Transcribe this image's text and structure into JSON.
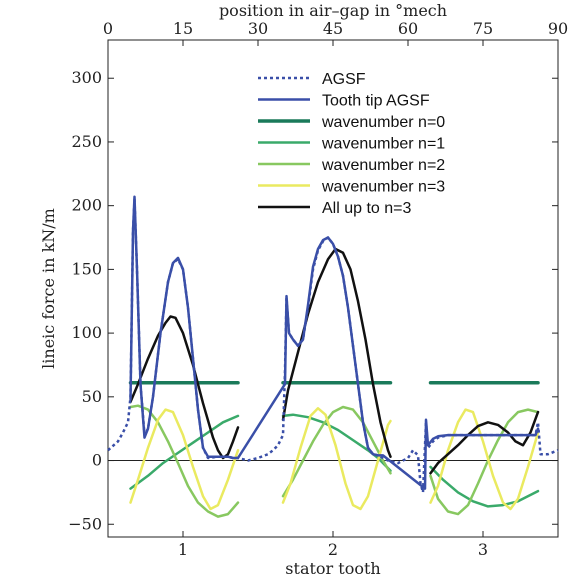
{
  "chart_data": {
    "type": "line",
    "xlabel": "stator tooth",
    "x2label": "position in air–gap in °mech",
    "ylabel": "lineic force in kN/m",
    "ylim": [
      -60,
      330
    ],
    "yticks": [
      "−50",
      "0",
      "50",
      "100",
      "150",
      "200",
      "250",
      "300"
    ],
    "ytick_values": [
      -50,
      0,
      50,
      100,
      150,
      200,
      250,
      300
    ],
    "xlim": [
      0,
      90
    ],
    "x2ticks": [
      "0",
      "15",
      "30",
      "45",
      "60",
      "75",
      "90"
    ],
    "x2tick_values": [
      0,
      15,
      30,
      45,
      60,
      75,
      90
    ],
    "xticks": [
      "1",
      "2",
      "3"
    ],
    "xtick_values": [
      15,
      45,
      75
    ],
    "grid": false,
    "legend_position": "top-center",
    "series": [
      {
        "name": "AGSF",
        "color": "#3a4fa8",
        "dash": true,
        "points": [
          [
            0,
            8
          ],
          [
            2,
            15
          ],
          [
            3,
            22
          ],
          [
            4,
            30
          ],
          [
            4.5,
            50
          ],
          [
            5,
            180
          ],
          [
            5.3,
            205
          ],
          [
            5.8,
            150
          ],
          [
            6.5,
            60
          ],
          [
            7.3,
            20
          ],
          [
            8,
            25
          ],
          [
            9,
            50
          ],
          [
            10.5,
            100
          ],
          [
            12,
            140
          ],
          [
            13,
            155
          ],
          [
            14,
            158
          ],
          [
            15,
            150
          ],
          [
            16,
            120
          ],
          [
            17,
            80
          ],
          [
            18,
            40
          ],
          [
            19,
            10
          ],
          [
            20,
            2
          ],
          [
            22,
            3
          ],
          [
            24,
            3
          ],
          [
            25,
            2
          ],
          [
            26,
            2
          ],
          [
            28,
            0
          ],
          [
            30,
            2
          ],
          [
            32,
            5
          ],
          [
            33,
            8
          ],
          [
            34,
            12
          ],
          [
            35,
            20
          ],
          [
            35.4,
            70
          ],
          [
            35.7,
            128
          ],
          [
            36.2,
            100
          ],
          [
            37,
            95
          ],
          [
            38,
            90
          ],
          [
            39,
            95
          ],
          [
            40,
            120
          ],
          [
            41,
            150
          ],
          [
            42,
            165
          ],
          [
            43,
            172
          ],
          [
            44,
            175
          ],
          [
            45,
            170
          ],
          [
            46,
            160
          ],
          [
            47,
            145
          ],
          [
            48,
            120
          ],
          [
            49,
            90
          ],
          [
            50,
            60
          ],
          [
            51,
            30
          ],
          [
            52,
            10
          ],
          [
            53,
            5
          ],
          [
            54,
            4
          ],
          [
            55,
            2
          ],
          [
            56,
            0
          ],
          [
            58,
            -2
          ],
          [
            60,
            2
          ],
          [
            61,
            8
          ],
          [
            62,
            4
          ],
          [
            62.5,
            -18
          ],
          [
            63,
            -25
          ],
          [
            63.6,
            30
          ],
          [
            64,
            10
          ],
          [
            65,
            15
          ],
          [
            66,
            18
          ],
          [
            68,
            20
          ],
          [
            70,
            20
          ],
          [
            72,
            20
          ],
          [
            74,
            20
          ],
          [
            76,
            20
          ],
          [
            78,
            20
          ],
          [
            80,
            20
          ],
          [
            82,
            20
          ],
          [
            84,
            20
          ],
          [
            85.5,
            20
          ],
          [
            86,
            30
          ],
          [
            86.5,
            5
          ],
          [
            88,
            5
          ],
          [
            90,
            8
          ]
        ]
      },
      {
        "name": "Tooth tip AGSF",
        "color": "#3a4fa8",
        "dash": false,
        "points": [
          [
            4.5,
            48
          ],
          [
            5,
            180
          ],
          [
            5.3,
            207
          ],
          [
            5.8,
            150
          ],
          [
            6.5,
            60
          ],
          [
            7.3,
            18
          ],
          [
            8,
            25
          ],
          [
            9,
            50
          ],
          [
            10.5,
            100
          ],
          [
            12,
            140
          ],
          [
            13,
            155
          ],
          [
            14,
            159
          ],
          [
            15,
            150
          ],
          [
            16,
            120
          ],
          [
            17,
            80
          ],
          [
            18,
            40
          ],
          [
            19,
            10
          ],
          [
            20,
            3
          ],
          [
            22,
            3
          ],
          [
            24,
            3
          ],
          [
            25,
            2
          ],
          [
            26,
            2
          ],
          [
            35.4,
            60
          ],
          [
            35.7,
            129
          ],
          [
            36.2,
            100
          ],
          [
            37,
            95
          ],
          [
            38,
            90
          ],
          [
            39,
            95
          ],
          [
            40,
            122
          ],
          [
            41,
            152
          ],
          [
            42,
            166
          ],
          [
            43,
            173
          ],
          [
            44,
            175
          ],
          [
            45,
            170
          ],
          [
            46,
            160
          ],
          [
            47,
            145
          ],
          [
            48,
            120
          ],
          [
            49,
            90
          ],
          [
            50,
            60
          ],
          [
            51,
            30
          ],
          [
            52,
            10
          ],
          [
            53,
            5
          ],
          [
            54,
            4
          ],
          [
            55,
            4
          ],
          [
            63.4,
            -22
          ],
          [
            63.6,
            32
          ],
          [
            64,
            12
          ],
          [
            65,
            17
          ],
          [
            66,
            19
          ],
          [
            68,
            20
          ],
          [
            70,
            20
          ],
          [
            72,
            20
          ],
          [
            74,
            20
          ],
          [
            76,
            20
          ],
          [
            78,
            20
          ],
          [
            80,
            20
          ],
          [
            82,
            20
          ],
          [
            84,
            20
          ],
          [
            85.5,
            20
          ],
          [
            86,
            25
          ]
        ]
      },
      {
        "name": "wavenumber n=0",
        "color": "#1a7a5a",
        "dash": false,
        "points": [
          [
            4.5,
            61
          ],
          [
            26,
            61
          ]
        ]
      },
      {
        "name": "wavenumber n=1",
        "color": "#3aaa6a",
        "dash": false,
        "points": [
          [
            4.5,
            -22
          ],
          [
            8,
            -12
          ],
          [
            11,
            -2
          ],
          [
            14,
            6
          ],
          [
            17,
            14
          ],
          [
            20,
            22
          ],
          [
            23,
            30
          ],
          [
            26,
            35
          ]
        ]
      },
      {
        "name": "wavenumber n=2",
        "color": "#88c860",
        "dash": false,
        "points": [
          [
            4.5,
            42
          ],
          [
            6,
            43
          ],
          [
            8,
            40
          ],
          [
            10,
            30
          ],
          [
            12,
            15
          ],
          [
            14,
            -2
          ],
          [
            16,
            -20
          ],
          [
            18,
            -33
          ],
          [
            20,
            -40
          ],
          [
            22,
            -44
          ],
          [
            24,
            -42
          ],
          [
            26,
            -33
          ]
        ]
      },
      {
        "name": "wavenumber n=3",
        "color": "#eaea60",
        "dash": false,
        "points": [
          [
            4.5,
            -33
          ],
          [
            6,
            -15
          ],
          [
            8,
            10
          ],
          [
            10,
            32
          ],
          [
            11.5,
            40
          ],
          [
            13,
            38
          ],
          [
            15,
            20
          ],
          [
            17,
            -5
          ],
          [
            19,
            -28
          ],
          [
            20.5,
            -38
          ],
          [
            22,
            -35
          ],
          [
            24,
            -15
          ],
          [
            26,
            8
          ]
        ]
      },
      {
        "name": "All up to n=3",
        "color": "#111111",
        "dash": false,
        "points": [
          [
            4.5,
            46
          ],
          [
            6,
            60
          ],
          [
            8,
            80
          ],
          [
            10,
            98
          ],
          [
            11.5,
            108
          ],
          [
            12.5,
            113
          ],
          [
            13.5,
            112
          ],
          [
            15,
            100
          ],
          [
            17,
            75
          ],
          [
            19,
            45
          ],
          [
            21,
            18
          ],
          [
            22,
            8
          ],
          [
            23,
            2
          ],
          [
            24,
            5
          ],
          [
            25,
            15
          ],
          [
            26,
            26
          ]
        ]
      },
      {
        "name": "",
        "color": "#1a7a5a",
        "dash": false,
        "points": [
          [
            35,
            61
          ],
          [
            56.5,
            61
          ]
        ]
      },
      {
        "name": "",
        "color": "#3aaa6a",
        "dash": false,
        "points": [
          [
            35,
            35
          ],
          [
            37,
            36
          ],
          [
            40,
            34
          ],
          [
            43,
            30
          ],
          [
            46,
            24
          ],
          [
            49,
            16
          ],
          [
            52,
            8
          ],
          [
            54,
            2
          ],
          [
            56.5,
            -8
          ]
        ]
      },
      {
        "name": "",
        "color": "#88c860",
        "dash": false,
        "points": [
          [
            35,
            -28
          ],
          [
            37,
            -15
          ],
          [
            39,
            0
          ],
          [
            41,
            15
          ],
          [
            43,
            28
          ],
          [
            45,
            38
          ],
          [
            47,
            42
          ],
          [
            49,
            40
          ],
          [
            51,
            30
          ],
          [
            53,
            15
          ],
          [
            55,
            0
          ],
          [
            56.5,
            -10
          ]
        ]
      },
      {
        "name": "",
        "color": "#eaea60",
        "dash": false,
        "points": [
          [
            35,
            -33
          ],
          [
            36.5,
            -18
          ],
          [
            38.5,
            10
          ],
          [
            40.5,
            35
          ],
          [
            42,
            41
          ],
          [
            43.5,
            36
          ],
          [
            45.5,
            12
          ],
          [
            47.5,
            -18
          ],
          [
            49,
            -35
          ],
          [
            50.5,
            -38
          ],
          [
            52,
            -28
          ],
          [
            54,
            0
          ],
          [
            56,
            28
          ],
          [
            56.5,
            31
          ]
        ]
      },
      {
        "name": "",
        "color": "#111111",
        "dash": false,
        "points": [
          [
            35,
            32
          ],
          [
            36,
            55
          ],
          [
            38,
            85
          ],
          [
            40,
            115
          ],
          [
            42,
            140
          ],
          [
            44,
            158
          ],
          [
            45.5,
            166
          ],
          [
            47,
            163
          ],
          [
            48.5,
            150
          ],
          [
            50,
            125
          ],
          [
            51.5,
            95
          ],
          [
            53,
            60
          ],
          [
            54.5,
            30
          ],
          [
            56,
            8
          ],
          [
            56.5,
            3
          ]
        ]
      },
      {
        "name": "",
        "color": "#1a7a5a",
        "dash": false,
        "points": [
          [
            64.5,
            61
          ],
          [
            86,
            61
          ]
        ]
      },
      {
        "name": "",
        "color": "#3aaa6a",
        "dash": false,
        "points": [
          [
            64.5,
            -5
          ],
          [
            67,
            -15
          ],
          [
            70,
            -25
          ],
          [
            73,
            -32
          ],
          [
            76,
            -36
          ],
          [
            79,
            -35
          ],
          [
            82,
            -32
          ],
          [
            86,
            -24
          ]
        ]
      },
      {
        "name": "",
        "color": "#88c860",
        "dash": false,
        "points": [
          [
            64.5,
            -12
          ],
          [
            66,
            -30
          ],
          [
            68,
            -40
          ],
          [
            70,
            -42
          ],
          [
            72,
            -35
          ],
          [
            74,
            -18
          ],
          [
            76,
            0
          ],
          [
            78,
            16
          ],
          [
            80,
            30
          ],
          [
            82,
            38
          ],
          [
            84,
            40
          ],
          [
            86,
            38
          ]
        ]
      },
      {
        "name": "",
        "color": "#eaea60",
        "dash": false,
        "points": [
          [
            64.5,
            -33
          ],
          [
            66,
            -20
          ],
          [
            68,
            8
          ],
          [
            70,
            30
          ],
          [
            71.5,
            40
          ],
          [
            73,
            38
          ],
          [
            75,
            15
          ],
          [
            77,
            -12
          ],
          [
            79,
            -33
          ],
          [
            80.5,
            -38
          ],
          [
            82,
            -30
          ],
          [
            84,
            -5
          ],
          [
            86,
            22
          ]
        ]
      },
      {
        "name": "",
        "color": "#111111",
        "dash": false,
        "points": [
          [
            64.5,
            -10
          ],
          [
            66,
            -2
          ],
          [
            68,
            5
          ],
          [
            70,
            12
          ],
          [
            72,
            20
          ],
          [
            74,
            27
          ],
          [
            76,
            30
          ],
          [
            78,
            28
          ],
          [
            80,
            22
          ],
          [
            81.5,
            15
          ],
          [
            83,
            12
          ],
          [
            84.5,
            22
          ],
          [
            86,
            38
          ]
        ]
      }
    ]
  }
}
